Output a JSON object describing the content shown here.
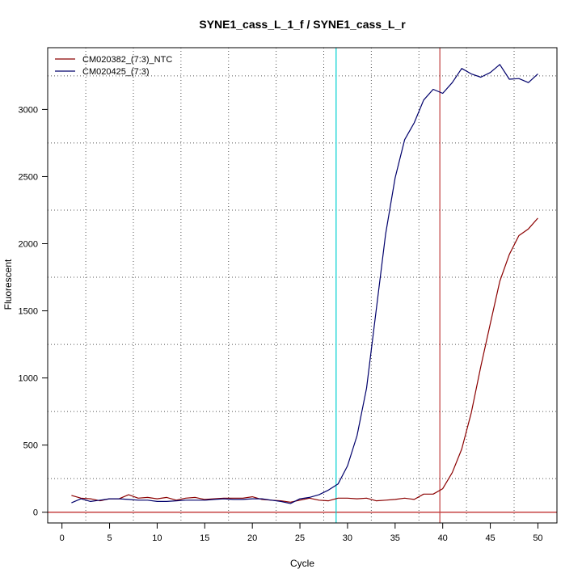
{
  "chart_data": {
    "type": "line",
    "title": "SYNE1_cass_L_1_f / SYNE1_cass_L_r",
    "xlabel": "Cycle",
    "ylabel": "Fluorescent",
    "xlim": [
      -1.5,
      52
    ],
    "ylim": [
      -80,
      3460
    ],
    "xticks": [
      0,
      5,
      10,
      15,
      20,
      25,
      30,
      35,
      40,
      45,
      50
    ],
    "yticks": [
      0,
      500,
      1000,
      1500,
      2000,
      2500,
      3000
    ],
    "grid": true,
    "legend": "top-left",
    "threshold_y": 0,
    "vertical_markers": [
      {
        "x": 28.8,
        "color": "#00d0d0"
      },
      {
        "x": 39.7,
        "color": "#c04040"
      }
    ],
    "x": [
      1,
      2,
      3,
      4,
      5,
      6,
      7,
      8,
      9,
      10,
      11,
      12,
      13,
      14,
      15,
      16,
      17,
      18,
      19,
      20,
      21,
      22,
      23,
      24,
      25,
      26,
      27,
      28,
      29,
      30,
      31,
      32,
      33,
      34,
      35,
      36,
      37,
      38,
      39,
      40,
      41,
      42,
      43,
      44,
      45,
      46,
      47,
      48,
      49,
      50
    ],
    "series": [
      {
        "name": "CM020382_(7:3)_NTC",
        "color": "#8b0000",
        "values": [
          125,
          105,
          100,
          85,
          100,
          100,
          130,
          105,
          110,
          100,
          110,
          90,
          105,
          110,
          95,
          100,
          105,
          105,
          105,
          115,
          95,
          90,
          85,
          75,
          90,
          105,
          90,
          85,
          105,
          105,
          100,
          105,
          85,
          90,
          95,
          105,
          95,
          135,
          135,
          175,
          295,
          470,
          740,
          1085,
          1405,
          1720,
          1920,
          2060,
          2110,
          2190
        ]
      },
      {
        "name": "CM020425_(7:3)",
        "color": "#00006b",
        "values": [
          70,
          100,
          80,
          90,
          100,
          100,
          95,
          90,
          90,
          80,
          80,
          85,
          90,
          90,
          90,
          95,
          100,
          95,
          95,
          100,
          100,
          90,
          80,
          65,
          100,
          110,
          130,
          165,
          210,
          345,
          570,
          925,
          1500,
          2070,
          2490,
          2775,
          2900,
          3070,
          3150,
          3120,
          3200,
          3305,
          3265,
          3240,
          3275,
          3335,
          3225,
          3230,
          3200,
          3265
        ]
      }
    ]
  }
}
